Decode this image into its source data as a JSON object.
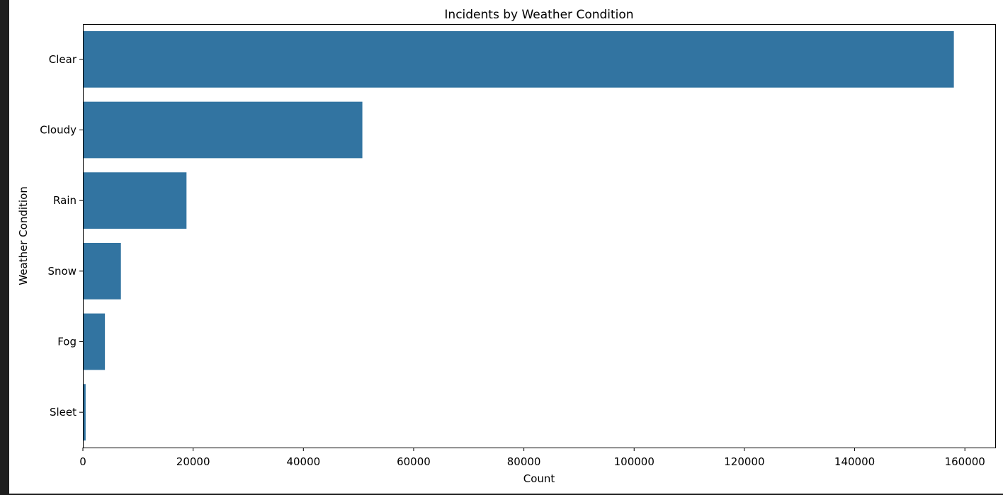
{
  "chart_data": {
    "type": "bar",
    "orientation": "horizontal",
    "title": "Incidents by Weather Condition",
    "xlabel": "Count",
    "ylabel": "Weather Condition",
    "categories": [
      "Clear",
      "Cloudy",
      "Rain",
      "Snow",
      "Fog",
      "Sleet"
    ],
    "values": [
      158000,
      50700,
      18800,
      6900,
      4000,
      500
    ],
    "xlim": [
      0,
      165500
    ],
    "xticks": [
      0,
      20000,
      40000,
      60000,
      80000,
      100000,
      120000,
      140000,
      160000
    ],
    "grid": false,
    "bar_color": "#3274a1"
  }
}
